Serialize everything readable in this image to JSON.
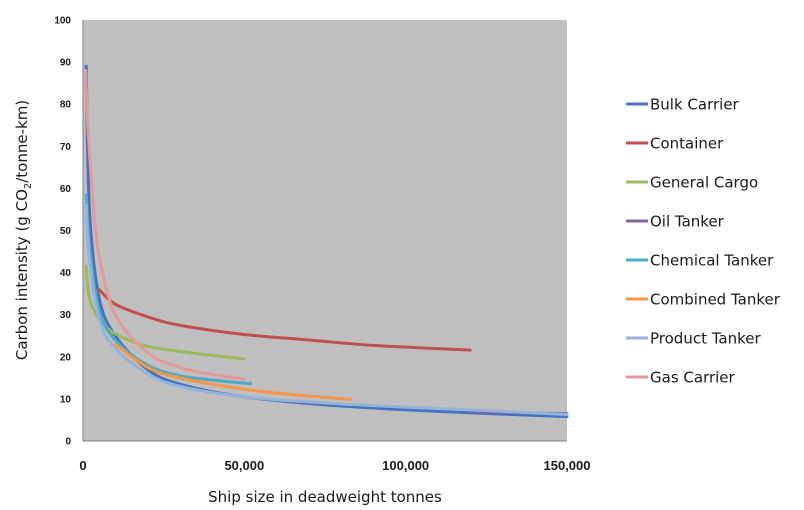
{
  "chart_data": {
    "type": "line",
    "title": "",
    "xlabel": "Ship size in deadweight tonnes",
    "ylabel": {
      "prefix": "Carbon intensity (g CO",
      "subscript": "2",
      "suffix": "/tonne-km)"
    },
    "xlim": [
      0,
      150000
    ],
    "ylim": [
      0,
      100
    ],
    "x_ticks": [
      0,
      50000,
      100000,
      150000
    ],
    "x_tick_labels": [
      "0",
      "50,000",
      "100,000",
      "150,000"
    ],
    "y_ticks": [
      0,
      10,
      20,
      30,
      40,
      50,
      60,
      70,
      80,
      90,
      100
    ],
    "y_tick_labels": [
      "0",
      "10",
      "20",
      "30",
      "40",
      "50",
      "60",
      "70",
      "80",
      "90",
      "100"
    ],
    "grid": false,
    "plot_background": "#bfbfbf",
    "legend_position": "right",
    "series": [
      {
        "name": "Bulk Carrier",
        "color": "#4472c4",
        "points": [
          [
            1000,
            89
          ],
          [
            2000,
            55
          ],
          [
            5000,
            34
          ],
          [
            10000,
            25
          ],
          [
            20000,
            17
          ],
          [
            30000,
            13.5
          ],
          [
            50000,
            10.5
          ],
          [
            80000,
            8.3
          ],
          [
            120000,
            6.7
          ],
          [
            150000,
            5.8
          ]
        ]
      },
      {
        "name": "Container",
        "color": "#c0504d",
        "points": [
          [
            5000,
            36
          ],
          [
            10000,
            32.5
          ],
          [
            20000,
            29.5
          ],
          [
            30000,
            27.5
          ],
          [
            50000,
            25.3
          ],
          [
            70000,
            24
          ],
          [
            90000,
            22.7
          ],
          [
            120000,
            21.6
          ]
        ]
      },
      {
        "name": "General Cargo",
        "color": "#9bbb59",
        "points": [
          [
            1000,
            41.5
          ],
          [
            2000,
            34
          ],
          [
            5000,
            29
          ],
          [
            10000,
            25.5
          ],
          [
            20000,
            22.5
          ],
          [
            35000,
            20.8
          ],
          [
            50000,
            19.5
          ]
        ]
      },
      {
        "name": "Oil Tanker",
        "color": "#8064a2",
        "points": [
          [
            120000,
            7
          ],
          [
            135000,
            6.7
          ],
          [
            150000,
            6.5
          ]
        ]
      },
      {
        "name": "Chemical Tanker",
        "color": "#4bacc6",
        "points": [
          [
            1000,
            58.5
          ],
          [
            2000,
            46
          ],
          [
            5000,
            31
          ],
          [
            10000,
            24
          ],
          [
            20000,
            18
          ],
          [
            30000,
            15.5
          ],
          [
            40000,
            14.5
          ],
          [
            52000,
            13.6
          ]
        ]
      },
      {
        "name": "Combined Tanker",
        "color": "#f79646",
        "points": [
          [
            10000,
            23
          ],
          [
            20000,
            17.5
          ],
          [
            30000,
            15
          ],
          [
            50000,
            12.3
          ],
          [
            65000,
            11
          ],
          [
            83000,
            9.9
          ]
        ]
      },
      {
        "name": "Product Tanker",
        "color": "#95b3d7",
        "points": [
          [
            1000,
            56
          ],
          [
            2000,
            43
          ],
          [
            5000,
            29
          ],
          [
            10000,
            22
          ],
          [
            20000,
            16
          ],
          [
            30000,
            13
          ],
          [
            50000,
            10.5
          ],
          [
            80000,
            8.8
          ],
          [
            120000,
            7.4
          ],
          [
            150000,
            6.3
          ]
        ]
      },
      {
        "name": "Gas Carrier",
        "color": "#e6999a",
        "points": [
          [
            800,
            88
          ],
          [
            1500,
            75
          ],
          [
            3000,
            58
          ],
          [
            5000,
            44
          ],
          [
            10000,
            30
          ],
          [
            20000,
            21
          ],
          [
            30000,
            17.5
          ],
          [
            40000,
            15.8
          ],
          [
            50000,
            14.7
          ]
        ]
      }
    ]
  }
}
